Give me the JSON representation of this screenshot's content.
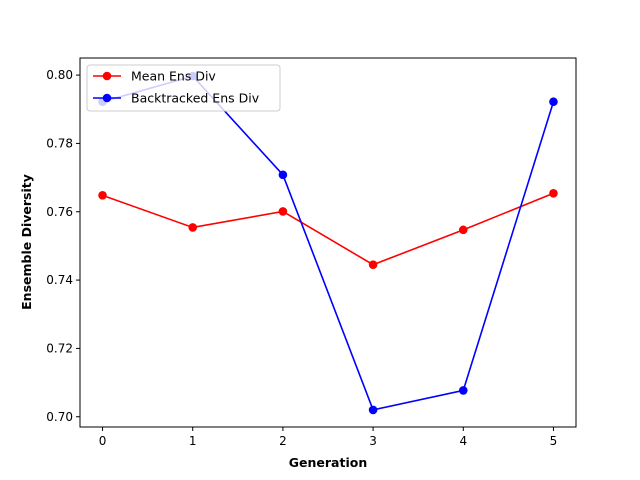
{
  "chart_data": {
    "type": "line",
    "title": "",
    "xlabel": "Generation",
    "ylabel": "Ensemble Diversity",
    "x": [
      0,
      1,
      2,
      3,
      4,
      5
    ],
    "xticks": [
      "0",
      "1",
      "2",
      "3",
      "4",
      "5"
    ],
    "xlim": [
      -0.25,
      5.25
    ],
    "ylim": [
      0.697,
      0.805
    ],
    "yticks": [
      "0.70",
      "0.72",
      "0.74",
      "0.76",
      "0.78",
      "0.80"
    ],
    "grid": false,
    "legend_position": "top-left",
    "series": [
      {
        "name": "Mean Ens Div",
        "color": "#ff0000",
        "marker": "circle",
        "values": [
          0.7648,
          0.7554,
          0.7601,
          0.7445,
          0.7547,
          0.7654
        ]
      },
      {
        "name": "Backtracked Ens Div",
        "color": "#0000ff",
        "marker": "circle",
        "values": [
          0.7922,
          0.7997,
          0.7708,
          0.702,
          0.7077,
          0.7922
        ]
      }
    ]
  }
}
